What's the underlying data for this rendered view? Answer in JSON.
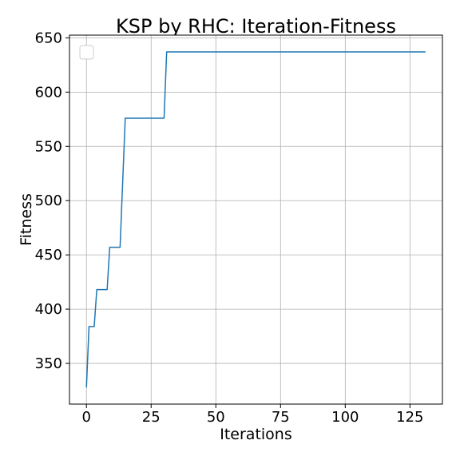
{
  "chart_data": {
    "type": "line",
    "title": "KSP by RHC: Iteration-Fitness",
    "xlabel": "Iterations",
    "ylabel": "Fitness",
    "xlim": [
      -6.55,
      137.55
    ],
    "ylim": [
      312.5,
      652.5
    ],
    "xticks": [
      0,
      25,
      50,
      75,
      100,
      125
    ],
    "yticks": [
      350,
      400,
      450,
      500,
      550,
      600,
      650
    ],
    "grid": true,
    "legend": "top-left, empty",
    "series": [
      {
        "color": "#1f77b4",
        "x": [
          0,
          1,
          2,
          3,
          4,
          5,
          6,
          7,
          8,
          9,
          10,
          11,
          12,
          13,
          14,
          15,
          16,
          17,
          18,
          19,
          20,
          21,
          22,
          23,
          24,
          25,
          26,
          27,
          28,
          29,
          30,
          31,
          131
        ],
        "y": [
          328,
          384,
          384,
          384,
          418,
          418,
          418,
          418,
          418,
          457,
          457,
          457,
          457,
          457,
          517,
          576,
          576,
          576,
          576,
          576,
          576,
          576,
          576,
          576,
          576,
          576,
          576,
          576,
          576,
          576,
          576,
          637,
          637
        ]
      }
    ]
  }
}
